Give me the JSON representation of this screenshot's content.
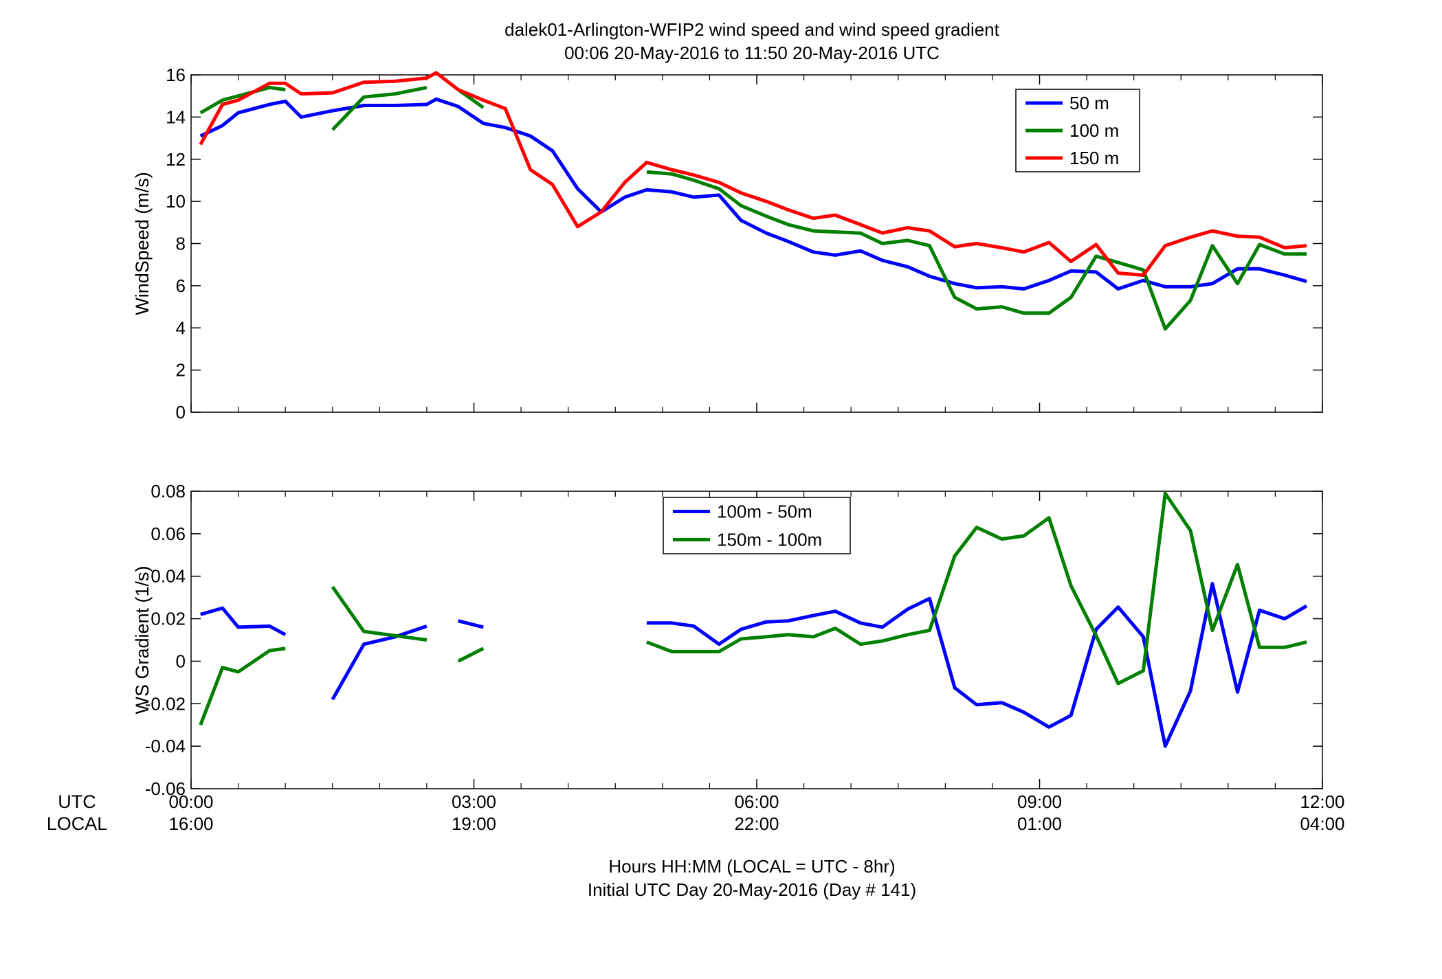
{
  "figure": {
    "title_line1": "dalek01-Arlington-WFIP2  wind speed and wind speed gradient",
    "title_line2": "00:06 20-May-2016 to 11:50 20-May-2016  UTC",
    "xlabel_line1": "Hours HH:MM  (LOCAL = UTC - 8hr)",
    "xlabel_line2": "Initial UTC Day 20-May-2016 (Day # 141)",
    "utc_label": "UTC",
    "local_label": "LOCAL",
    "utc_ticks": [
      "00:00",
      "03:00",
      "06:00",
      "09:00",
      "12:00"
    ],
    "local_ticks": [
      "16:00",
      "19:00",
      "22:00",
      "01:00",
      "04:00"
    ]
  },
  "chart_data": [
    {
      "type": "line",
      "title": "",
      "xlabel": "",
      "ylabel": "WindSpeed (m/s)",
      "xlim": [
        0,
        12
      ],
      "ylim": [
        0,
        16
      ],
      "yticks": [
        0,
        2,
        4,
        6,
        8,
        10,
        12,
        14,
        16
      ],
      "yticklabels": [
        "0",
        "2",
        "4",
        "6",
        "8",
        "10",
        "12",
        "14",
        "16"
      ],
      "grid": false,
      "legend_position": "top-right",
      "x": [
        0.1,
        0.333,
        0.5,
        0.833,
        1.0,
        1.167,
        1.5,
        1.833,
        2.167,
        2.5,
        2.6,
        2.833,
        3.1,
        3.333,
        3.6,
        3.833,
        4.1,
        4.35,
        4.6,
        4.833,
        5.1,
        5.333,
        5.6,
        5.833,
        6.1,
        6.333,
        6.6,
        6.833,
        7.1,
        7.333,
        7.6,
        7.833,
        8.1,
        8.333,
        8.6,
        8.833,
        9.1,
        9.333,
        9.6,
        9.833,
        10.1,
        10.333,
        10.6,
        10.833,
        11.1,
        11.333,
        11.6,
        11.833
      ],
      "series": [
        {
          "name": "50 m",
          "color": "#0000ff",
          "values": [
            13.1,
            13.6,
            14.2,
            14.6,
            14.75,
            14.0,
            14.3,
            14.55,
            14.55,
            14.6,
            14.85,
            14.5,
            13.7,
            13.5,
            13.1,
            12.4,
            10.6,
            9.5,
            10.2,
            10.55,
            10.45,
            10.2,
            10.3,
            9.1,
            8.5,
            8.1,
            7.6,
            7.45,
            7.65,
            7.2,
            6.9,
            6.45,
            6.1,
            5.9,
            5.95,
            5.85,
            6.25,
            6.7,
            6.65,
            5.85,
            6.25,
            5.95,
            5.95,
            6.1,
            6.8,
            6.8,
            6.5,
            6.2
          ]
        },
        {
          "name": "100 m",
          "color": "#007f00",
          "values": [
            14.2,
            14.8,
            15.0,
            15.4,
            15.3,
            null,
            13.4,
            14.95,
            15.1,
            15.4,
            null,
            15.3,
            14.45,
            null,
            null,
            null,
            null,
            null,
            null,
            11.4,
            11.3,
            11.0,
            10.6,
            9.8,
            9.3,
            8.9,
            8.6,
            8.55,
            8.5,
            8.0,
            8.15,
            7.9,
            5.45,
            4.9,
            5.0,
            4.7,
            4.7,
            5.45,
            7.4,
            7.1,
            6.75,
            3.95,
            5.3,
            7.9,
            6.1,
            7.95,
            7.5,
            7.5
          ]
        },
        {
          "name": "150 m",
          "color": "#ff0000",
          "values": [
            12.7,
            14.6,
            14.8,
            15.6,
            15.6,
            15.1,
            15.15,
            15.65,
            15.7,
            15.85,
            16.1,
            15.3,
            14.8,
            14.4,
            11.5,
            10.8,
            8.8,
            9.5,
            10.9,
            11.85,
            11.5,
            11.25,
            10.9,
            10.4,
            10.0,
            9.6,
            9.2,
            9.35,
            8.9,
            8.5,
            8.75,
            8.6,
            7.85,
            8.0,
            7.8,
            7.6,
            8.05,
            7.15,
            7.95,
            6.6,
            6.5,
            7.9,
            8.3,
            8.6,
            8.35,
            8.3,
            7.8,
            7.9
          ]
        }
      ]
    },
    {
      "type": "line",
      "title": "",
      "xlabel": "",
      "ylabel": "WS Gradient (1/s)",
      "xlim": [
        0,
        12
      ],
      "ylim": [
        -0.06,
        0.08
      ],
      "yticks": [
        -0.06,
        -0.04,
        -0.02,
        0,
        0.02,
        0.04,
        0.06,
        0.08
      ],
      "yticklabels": [
        "-0.06",
        "-0.04",
        "-0.02",
        "0",
        "0.02",
        "0.04",
        "0.06",
        "0.08"
      ],
      "grid": false,
      "legend_position": "top-center",
      "x": [
        0.1,
        0.333,
        0.5,
        0.833,
        1.0,
        1.167,
        1.5,
        1.833,
        2.167,
        2.5,
        2.6,
        2.833,
        3.1,
        3.333,
        3.6,
        3.833,
        4.1,
        4.35,
        4.6,
        4.833,
        5.1,
        5.333,
        5.6,
        5.833,
        6.1,
        6.333,
        6.6,
        6.833,
        7.1,
        7.333,
        7.6,
        7.833,
        8.1,
        8.333,
        8.6,
        8.833,
        9.1,
        9.333,
        9.6,
        9.833,
        10.1,
        10.333,
        10.6,
        10.833,
        11.1,
        11.333,
        11.6,
        11.833
      ],
      "series": [
        {
          "name": "100m - 50m",
          "color": "#0000ff",
          "values": [
            0.022,
            0.025,
            0.016,
            0.0165,
            0.0125,
            null,
            -0.018,
            0.008,
            0.0115,
            0.0165,
            null,
            0.019,
            0.016,
            null,
            null,
            null,
            null,
            null,
            null,
            0.018,
            0.018,
            0.0165,
            0.008,
            0.015,
            0.0185,
            0.019,
            0.0215,
            0.0235,
            0.018,
            0.016,
            0.0245,
            0.0295,
            -0.0125,
            -0.0205,
            -0.0195,
            -0.024,
            -0.031,
            -0.0255,
            0.015,
            0.0255,
            0.0115,
            -0.04,
            -0.014,
            0.0365,
            -0.0145,
            0.024,
            0.02,
            0.026
          ]
        },
        {
          "name": "150m - 100m",
          "color": "#007f00",
          "values": [
            -0.03,
            -0.003,
            -0.005,
            0.005,
            0.006,
            null,
            0.035,
            0.014,
            0.012,
            0.01,
            null,
            0.0,
            0.006,
            null,
            null,
            null,
            null,
            null,
            null,
            0.009,
            0.0045,
            0.0045,
            0.0045,
            0.0105,
            0.0115,
            0.0125,
            0.0115,
            0.0155,
            0.008,
            0.0095,
            0.0125,
            0.0145,
            0.0495,
            0.063,
            0.0575,
            0.059,
            0.0675,
            0.0355,
            0.012,
            -0.0105,
            -0.0045,
            0.079,
            0.0615,
            0.0145,
            0.0455,
            0.0065,
            0.0065,
            0.009
          ]
        }
      ]
    }
  ]
}
